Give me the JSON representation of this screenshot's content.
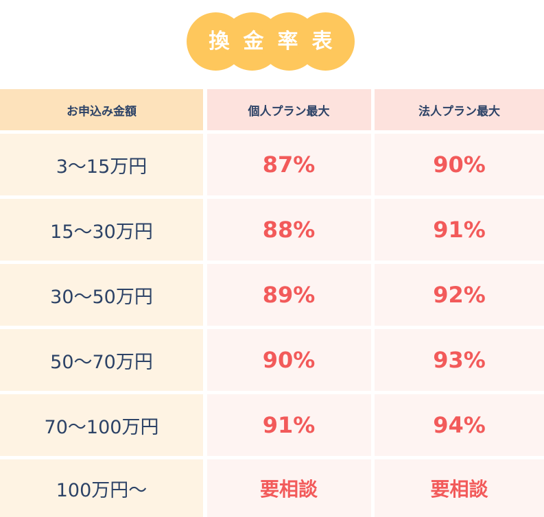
{
  "title": "換金率表",
  "colors": {
    "title_bg": "#fec75c",
    "accent": "#f25a5a",
    "text": "#2c4266"
  },
  "table": {
    "headers": [
      "お申込み金額",
      "個人プラン最大",
      "法人プラン最大"
    ],
    "rows": [
      {
        "amount": "3〜15万円",
        "personal": "87%",
        "corporate": "90%"
      },
      {
        "amount": "15〜30万円",
        "personal": "88%",
        "corporate": "91%"
      },
      {
        "amount": "30〜50万円",
        "personal": "89%",
        "corporate": "92%"
      },
      {
        "amount": "50〜70万円",
        "personal": "90%",
        "corporate": "93%"
      },
      {
        "amount": "70〜100万円",
        "personal": "91%",
        "corporate": "94%"
      },
      {
        "amount": "100万円〜",
        "personal": "要相談",
        "corporate": "要相談"
      }
    ]
  }
}
